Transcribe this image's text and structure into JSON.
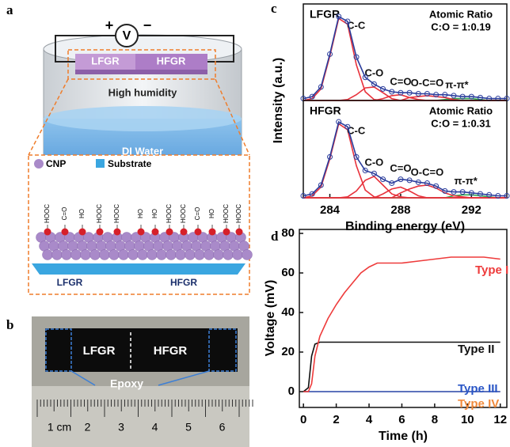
{
  "panels": {
    "a": "a",
    "b": "b",
    "c": "c",
    "d": "d"
  },
  "diagram": {
    "meter": {
      "plus": "+",
      "symbol": "V",
      "minus": "−"
    },
    "top_samples": [
      "LFGR",
      "HFGR"
    ],
    "vapor": "High humidity",
    "water": "DI Water",
    "legend": [
      "CNP",
      "Substrate"
    ],
    "groups": [
      "HOOC",
      "C=O",
      "HO",
      "HOOC",
      "HOOC",
      "HO",
      "HO",
      "HOOC",
      "HOOC",
      "C=O",
      "HO",
      "HOOC",
      "HOOC"
    ],
    "bottom_samples": [
      "LFGR",
      "HFGR"
    ]
  },
  "photo": {
    "samples": [
      "LFGR",
      "HFGR"
    ],
    "epoxy": "Epoxy",
    "ruler": [
      "1 cm",
      "2",
      "3",
      "4",
      "5",
      "6"
    ]
  },
  "chart_data": [
    {
      "type": "line",
      "title": "LFGR",
      "annotations": [
        "Atomic Ratio",
        "C:O = 1:0.19"
      ],
      "ylabel": "Intensity (a.u.)",
      "xlim": [
        282.5,
        294
      ],
      "ylim": [
        0,
        100
      ],
      "x": [
        282.5,
        283,
        283.5,
        284,
        284.5,
        285,
        285.5,
        286,
        286.5,
        287,
        287.5,
        288,
        288.5,
        289,
        289.5,
        290,
        290.5,
        291,
        291.5,
        292,
        292.5,
        293,
        293.5,
        294
      ],
      "series": [
        {
          "color": "#2b3d9c",
          "markers": true,
          "values": [
            2,
            4,
            14,
            48,
            87,
            82,
            45,
            24,
            17,
            12,
            9,
            8,
            8,
            7,
            7,
            6,
            6,
            5,
            4,
            4,
            3,
            2,
            2,
            2
          ]
        },
        {
          "name": "C-C",
          "color": "#e8323c",
          "values": [
            0,
            2,
            12,
            46,
            85,
            79,
            37,
            9,
            1,
            0,
            0,
            0,
            0,
            0,
            0,
            0,
            0,
            0,
            0,
            0,
            0,
            0,
            0,
            0
          ]
        },
        {
          "name": "C-O",
          "color": "#e8323c",
          "values": [
            0,
            0,
            0,
            0,
            0,
            1,
            6,
            13,
            14,
            8,
            2,
            0,
            0,
            0,
            0,
            0,
            0,
            0,
            0,
            0,
            0,
            0,
            0,
            0
          ]
        },
        {
          "name": "C=O",
          "color": "#e8323c",
          "values": [
            0,
            0,
            0,
            0,
            0,
            0,
            0,
            0,
            0,
            2,
            5,
            6,
            3,
            1,
            0,
            0,
            0,
            0,
            0,
            0,
            0,
            0,
            0,
            0
          ]
        },
        {
          "name": "O-C=O",
          "color": "#e8323c",
          "values": [
            0,
            0,
            0,
            0,
            0,
            0,
            0,
            0,
            0,
            0,
            0,
            0,
            3,
            4,
            5,
            4,
            3,
            1,
            0,
            0,
            0,
            0,
            0,
            0
          ]
        },
        {
          "name": "π-π*",
          "color": "#2fa84f",
          "values": [
            0,
            0,
            0,
            0,
            0,
            0,
            0,
            0,
            0,
            0,
            0,
            0,
            0,
            0,
            0,
            0,
            1,
            2,
            2,
            2,
            1,
            0,
            0,
            0
          ]
        }
      ]
    },
    {
      "type": "line",
      "title": "HFGR",
      "annotations": [
        "Atomic Ratio",
        "C:O = 1:0.31"
      ],
      "xlabel": "Binding energy (eV)",
      "xlim": [
        282.5,
        294
      ],
      "ylim": [
        0,
        100
      ],
      "xticks": [
        284,
        288,
        292
      ],
      "x": [
        282.5,
        283,
        283.5,
        284,
        284.5,
        285,
        285.5,
        286,
        286.5,
        287,
        287.5,
        288,
        288.5,
        289,
        289.5,
        290,
        290.5,
        291,
        291.5,
        292,
        292.5,
        293,
        293.5,
        294
      ],
      "series": [
        {
          "color": "#2b3d9c",
          "markers": true,
          "values": [
            2,
            4,
            13,
            42,
            78,
            73,
            42,
            28,
            25,
            19,
            15,
            19,
            18,
            16,
            15,
            12,
            7,
            6,
            6,
            5,
            4,
            3,
            2,
            2
          ]
        },
        {
          "name": "C-C",
          "color": "#e8323c",
          "values": [
            0,
            2,
            11,
            40,
            76,
            70,
            33,
            8,
            1,
            0,
            0,
            0,
            0,
            0,
            0,
            0,
            0,
            0,
            0,
            0,
            0,
            0,
            0,
            0
          ]
        },
        {
          "name": "C-O",
          "color": "#e8323c",
          "values": [
            0,
            0,
            0,
            0,
            0,
            1,
            7,
            18,
            22,
            13,
            4,
            1,
            0,
            0,
            0,
            0,
            0,
            0,
            0,
            0,
            0,
            0,
            0,
            0
          ]
        },
        {
          "name": "C=O",
          "color": "#e8323c",
          "values": [
            0,
            0,
            0,
            0,
            0,
            0,
            0,
            0,
            0,
            4,
            9,
            11,
            7,
            2,
            0,
            0,
            0,
            0,
            0,
            0,
            0,
            0,
            0,
            0
          ]
        },
        {
          "name": "O-C=O",
          "color": "#e8323c",
          "values": [
            0,
            0,
            0,
            0,
            0,
            0,
            0,
            0,
            0,
            0,
            0,
            5,
            9,
            12,
            13,
            10,
            5,
            2,
            1,
            0,
            0,
            0,
            0,
            0
          ]
        },
        {
          "name": "π-π*",
          "color": "#2fa84f",
          "values": [
            0,
            0,
            0,
            0,
            0,
            0,
            0,
            0,
            0,
            0,
            0,
            0,
            0,
            0,
            0,
            0,
            0,
            2,
            3,
            3,
            2,
            1,
            0,
            0
          ]
        }
      ]
    },
    {
      "type": "line",
      "xlabel": "Time (h)",
      "ylabel": "Voltage (mV)",
      "xlim": [
        -0.25,
        12.4
      ],
      "ylim": [
        -8,
        82
      ],
      "xticks": [
        0,
        2,
        4,
        6,
        8,
        10,
        12
      ],
      "yticks": [
        0,
        20,
        40,
        60,
        80
      ],
      "x": [
        0,
        0.3,
        0.5,
        0.7,
        1,
        1.5,
        2,
        2.5,
        3,
        3.5,
        4,
        4.5,
        5,
        6,
        7,
        8,
        9,
        10,
        11,
        12
      ],
      "series": [
        {
          "name": "Type I",
          "color": "#ee3b3b",
          "values": [
            0,
            0,
            4,
            18,
            28,
            37,
            44,
            50,
            55,
            60,
            63,
            65,
            65,
            65,
            66,
            67,
            68,
            68,
            68,
            67
          ]
        },
        {
          "name": "Type II",
          "color": "#111111",
          "values": [
            0,
            2,
            18,
            24,
            25,
            25,
            25,
            25,
            25,
            25,
            25,
            25,
            25,
            25,
            25,
            25,
            25,
            25,
            25,
            25
          ]
        },
        {
          "name": "Type III",
          "color": "#2a56c6",
          "values": [
            0,
            0,
            0,
            0,
            0,
            0,
            0,
            0,
            0,
            0,
            0,
            0,
            0,
            0,
            0,
            0,
            0,
            0,
            0,
            0
          ]
        },
        {
          "name": "Type IV",
          "color": "#f08a3c",
          "values": [
            0,
            0,
            0,
            0,
            0,
            0,
            0,
            0,
            0,
            0,
            0,
            0,
            0,
            0,
            0,
            0,
            0,
            0,
            0,
            0
          ]
        }
      ]
    }
  ]
}
